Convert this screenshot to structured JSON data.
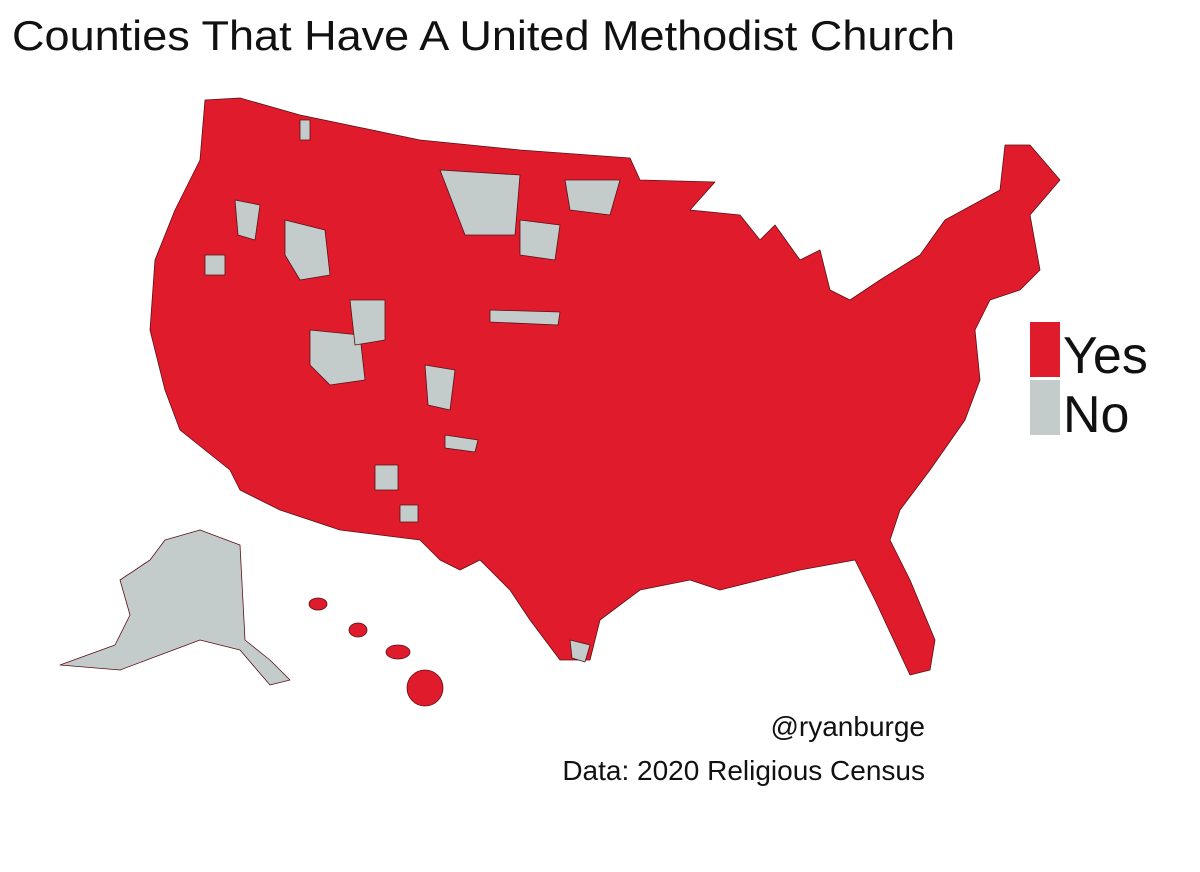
{
  "title": "Counties That Have A United Methodist Church",
  "legend": [
    {
      "label": "Yes",
      "color": "#e01b2c"
    },
    {
      "label": "No",
      "color": "#c3cccb"
    }
  ],
  "credit": "@ryanburge",
  "source": "Data: 2020 Religious Census"
}
